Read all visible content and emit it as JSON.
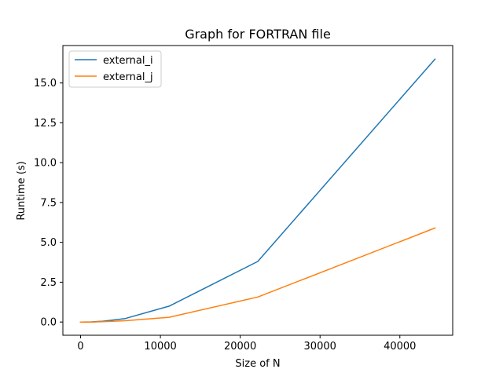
{
  "chart_data": {
    "type": "line",
    "title": "Graph for FORTRAN file",
    "xlabel": "Size of N",
    "ylabel": "Runtime (s)",
    "xlim": [
      -2220,
      46620
    ],
    "ylim": [
      -0.83,
      17.35
    ],
    "xticks": [
      0,
      10000,
      20000,
      30000,
      40000
    ],
    "xtick_labels": [
      "0",
      "10000",
      "20000",
      "30000",
      "40000"
    ],
    "yticks": [
      0.0,
      2.5,
      5.0,
      7.5,
      10.0,
      12.5,
      15.0
    ],
    "ytick_labels": [
      "0.0",
      "2.5",
      "5.0",
      "7.5",
      "10.0",
      "12.5",
      "15.0"
    ],
    "grid": false,
    "legend_position": "upper-left",
    "x": [
      0,
      1400,
      2800,
      5600,
      11100,
      22200,
      44400
    ],
    "series": [
      {
        "name": "external_i",
        "color": "#1f77b4",
        "values": [
          0.0,
          0.01,
          0.05,
          0.22,
          1.0,
          3.8,
          16.5
        ]
      },
      {
        "name": "external_j",
        "color": "#ff7f0e",
        "values": [
          0.0,
          0.0,
          0.02,
          0.08,
          0.3,
          1.57,
          5.9
        ]
      }
    ]
  }
}
